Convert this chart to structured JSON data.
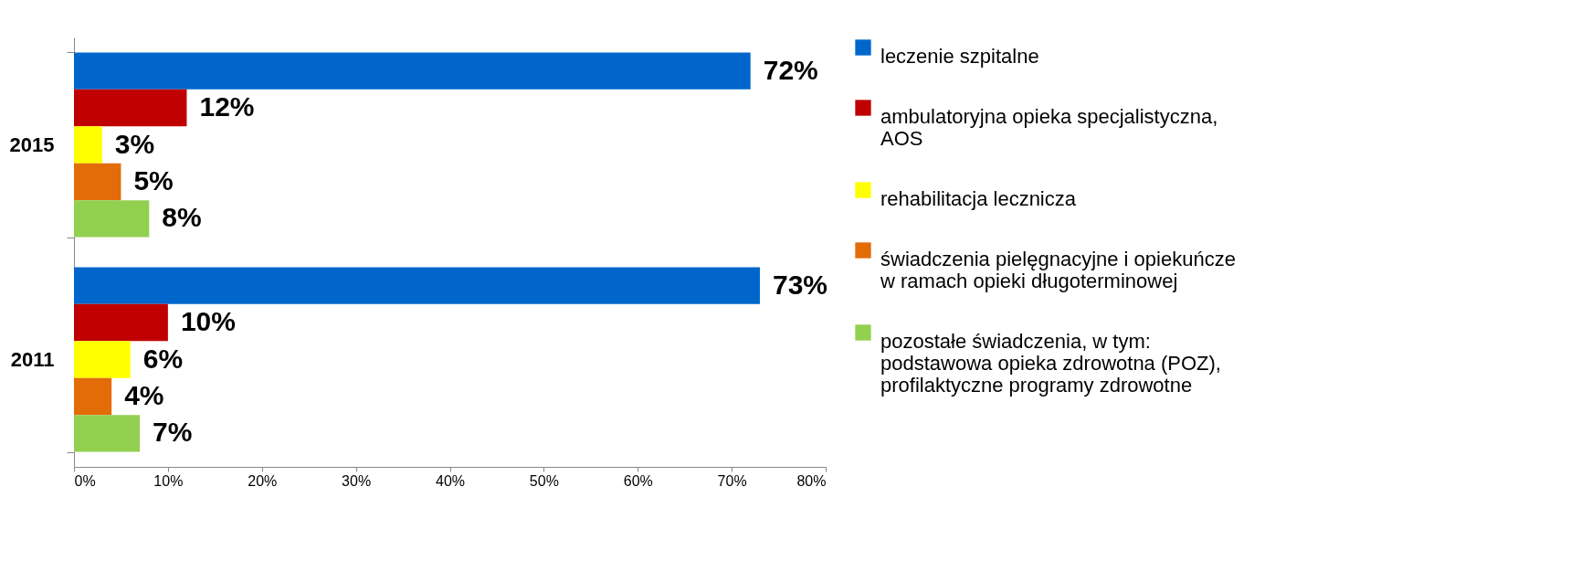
{
  "chart_data": {
    "type": "bar",
    "orientation": "horizontal",
    "categories": [
      "2015",
      "2011"
    ],
    "series": [
      {
        "name": "leczenie szpitalne",
        "color": "#0066cc",
        "values": [
          72,
          73
        ],
        "value_labels": [
          "72%",
          "73%"
        ]
      },
      {
        "name": "ambulatoryjna opieka specjalistyczna, AOS",
        "color": "#c00000",
        "values": [
          12,
          10
        ],
        "value_labels": [
          "12%",
          "10%"
        ]
      },
      {
        "name": "rehabilitacja lecznicza",
        "color": "#ffff00",
        "values": [
          3,
          6
        ],
        "value_labels": [
          "3%",
          "6%"
        ]
      },
      {
        "name": "świadczenia pielęgnacyjne i opiekuńcze w ramach opieki długoterminowej",
        "color": "#e36c09",
        "values": [
          5,
          4
        ],
        "value_labels": [
          "5%",
          "4%"
        ]
      },
      {
        "name": "pozostałe świadczenia, w tym: podstawowa opieka zdrowotna (POZ), profilaktyczne programy zdrowotne",
        "color": "#92d050",
        "values": [
          8,
          7
        ],
        "value_labels": [
          "8%",
          "7%"
        ]
      }
    ],
    "xlim": [
      0,
      80
    ],
    "xticks": [
      {
        "value": 0,
        "label": "0%"
      },
      {
        "value": 10,
        "label": "10%"
      },
      {
        "value": 20,
        "label": "20%"
      },
      {
        "value": 30,
        "label": "30%"
      },
      {
        "value": 40,
        "label": "40%"
      },
      {
        "value": 50,
        "label": "50%"
      },
      {
        "value": 60,
        "label": "60%"
      },
      {
        "value": 70,
        "label": "70%"
      },
      {
        "value": 80,
        "label": "80%"
      }
    ],
    "legend": "right"
  }
}
